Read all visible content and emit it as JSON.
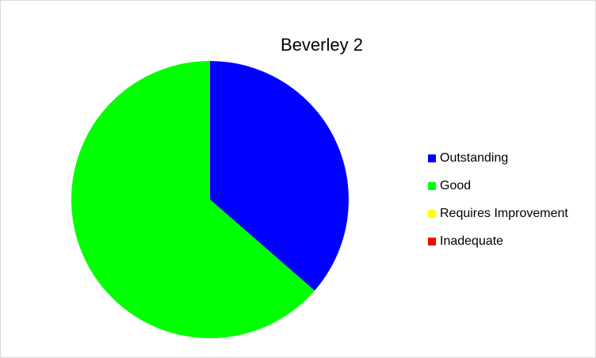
{
  "chart_data": {
    "type": "pie",
    "title": "Beverley 2",
    "categories": [
      "Outstanding",
      "Good",
      "Requires Improvement",
      "Inadequate"
    ],
    "values": [
      36.4,
      63.6,
      0,
      0
    ],
    "colors": [
      "#0000ff",
      "#00ff00",
      "#ffff00",
      "#ff0000"
    ],
    "legend": "right"
  }
}
